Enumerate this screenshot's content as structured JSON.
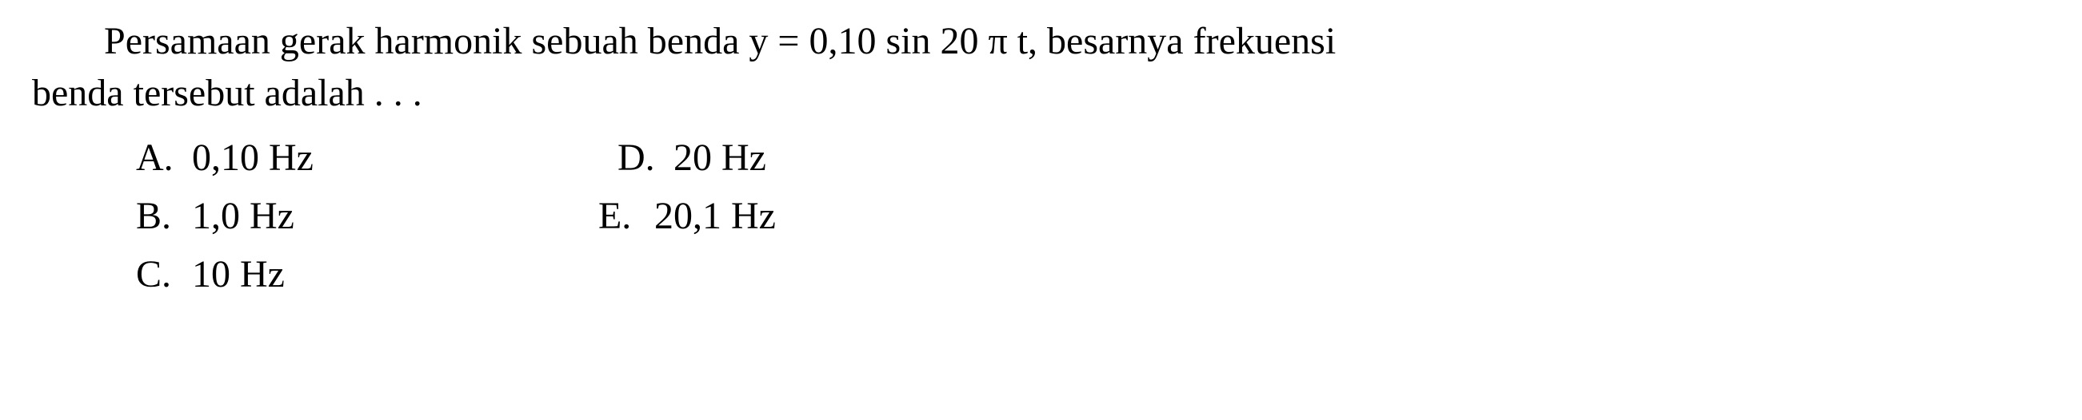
{
  "question": {
    "text_line1": "Persamaan gerak harmonik sebuah benda y = 0,10 sin 20 π t, besarnya frekuensi",
    "text_line2": "benda tersebut adalah . . ."
  },
  "options": {
    "a": {
      "letter": "A.",
      "value": "0,10 Hz"
    },
    "b": {
      "letter": "B.",
      "value": "1,0 Hz"
    },
    "c": {
      "letter": "C.",
      "value": "10 Hz"
    },
    "d": {
      "letter": "D.",
      "value": "20 Hz"
    },
    "e": {
      "letter": "E.",
      "value": "20,1 Hz"
    }
  },
  "styling": {
    "font_family": "Times New Roman",
    "font_size_pt": 36,
    "text_color": "#000000",
    "background_color": "#ffffff"
  }
}
